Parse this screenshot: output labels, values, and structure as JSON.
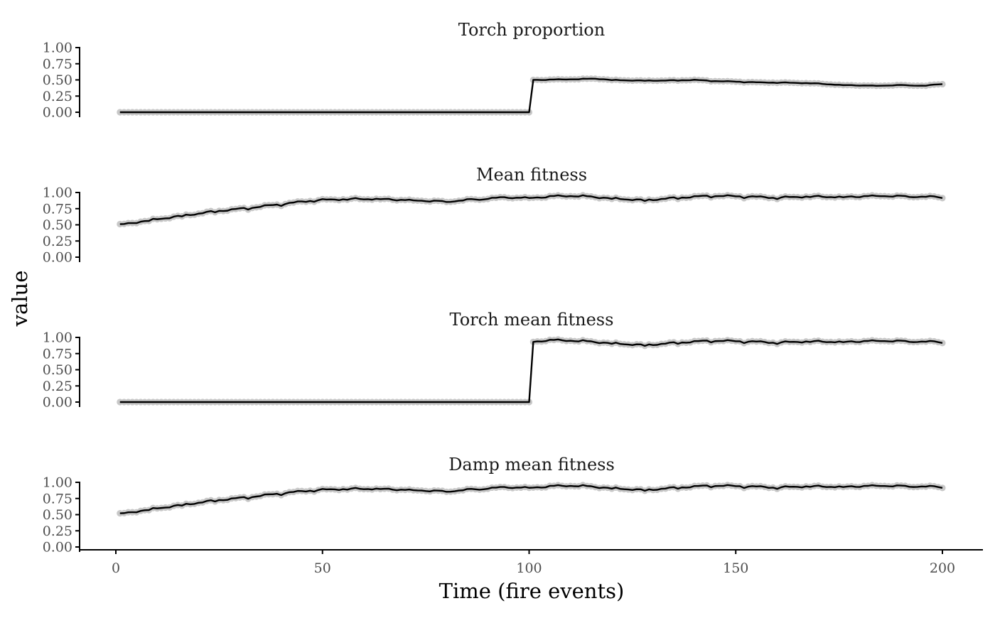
{
  "chart_data": {
    "type": "line",
    "ylabel": "value",
    "xlabel": "Time (fire events)",
    "x_ticks": [
      0,
      50,
      100,
      150,
      200
    ],
    "y_ticks": [
      "0.00",
      "0.25",
      "0.50",
      "0.75",
      "1.00"
    ],
    "xlim": [
      1,
      200
    ],
    "ylim": [
      0,
      1
    ],
    "grid": false,
    "legend": "none",
    "colors": {
      "line": "#000000",
      "points": "#c8c8c8"
    },
    "panels": [
      {
        "title": "Torch proportion",
        "anchors": [
          [
            1,
            0
          ],
          [
            100,
            0
          ],
          [
            101,
            0.5
          ],
          [
            110,
            0.51
          ],
          [
            116,
            0.52
          ],
          [
            120,
            0.5
          ],
          [
            126,
            0.49
          ],
          [
            133,
            0.49
          ],
          [
            140,
            0.5
          ],
          [
            146,
            0.48
          ],
          [
            152,
            0.47
          ],
          [
            156,
            0.46
          ],
          [
            160,
            0.46
          ],
          [
            168,
            0.45
          ],
          [
            176,
            0.42
          ],
          [
            184,
            0.41
          ],
          [
            190,
            0.42
          ],
          [
            196,
            0.41
          ],
          [
            200,
            0.44
          ]
        ],
        "wobble": 0.006
      },
      {
        "title": "Mean fitness",
        "anchors": [
          [
            1,
            0.5
          ],
          [
            8,
            0.57
          ],
          [
            16,
            0.64
          ],
          [
            24,
            0.71
          ],
          [
            32,
            0.76
          ],
          [
            40,
            0.82
          ],
          [
            48,
            0.88
          ],
          [
            56,
            0.9
          ],
          [
            64,
            0.9
          ],
          [
            72,
            0.88
          ],
          [
            80,
            0.86
          ],
          [
            88,
            0.9
          ],
          [
            96,
            0.93
          ],
          [
            100,
            0.91
          ],
          [
            104,
            0.94
          ],
          [
            112,
            0.95
          ],
          [
            120,
            0.91
          ],
          [
            128,
            0.88
          ],
          [
            136,
            0.92
          ],
          [
            144,
            0.95
          ],
          [
            152,
            0.94
          ],
          [
            160,
            0.92
          ],
          [
            168,
            0.94
          ],
          [
            176,
            0.93
          ],
          [
            184,
            0.95
          ],
          [
            192,
            0.94
          ],
          [
            200,
            0.93
          ]
        ],
        "wobble": 0.018
      },
      {
        "title": "Torch mean fitness",
        "anchors": [
          [
            1,
            0
          ],
          [
            100,
            0
          ],
          [
            101,
            0.93
          ],
          [
            104,
            0.96
          ],
          [
            112,
            0.95
          ],
          [
            120,
            0.91
          ],
          [
            128,
            0.88
          ],
          [
            136,
            0.92
          ],
          [
            144,
            0.95
          ],
          [
            152,
            0.94
          ],
          [
            160,
            0.92
          ],
          [
            168,
            0.94
          ],
          [
            176,
            0.93
          ],
          [
            184,
            0.95
          ],
          [
            192,
            0.94
          ],
          [
            200,
            0.93
          ]
        ],
        "wobble": 0.018
      },
      {
        "title": "Damp mean fitness",
        "anchors": [
          [
            1,
            0.51
          ],
          [
            8,
            0.58
          ],
          [
            16,
            0.65
          ],
          [
            24,
            0.72
          ],
          [
            32,
            0.77
          ],
          [
            40,
            0.83
          ],
          [
            48,
            0.88
          ],
          [
            56,
            0.9
          ],
          [
            64,
            0.9
          ],
          [
            72,
            0.88
          ],
          [
            80,
            0.86
          ],
          [
            88,
            0.9
          ],
          [
            96,
            0.93
          ],
          [
            100,
            0.91
          ],
          [
            104,
            0.94
          ],
          [
            112,
            0.95
          ],
          [
            120,
            0.91
          ],
          [
            128,
            0.88
          ],
          [
            136,
            0.92
          ],
          [
            144,
            0.95
          ],
          [
            152,
            0.94
          ],
          [
            160,
            0.92
          ],
          [
            168,
            0.94
          ],
          [
            176,
            0.93
          ],
          [
            184,
            0.95
          ],
          [
            192,
            0.94
          ],
          [
            200,
            0.93
          ]
        ],
        "wobble": 0.018
      }
    ]
  }
}
